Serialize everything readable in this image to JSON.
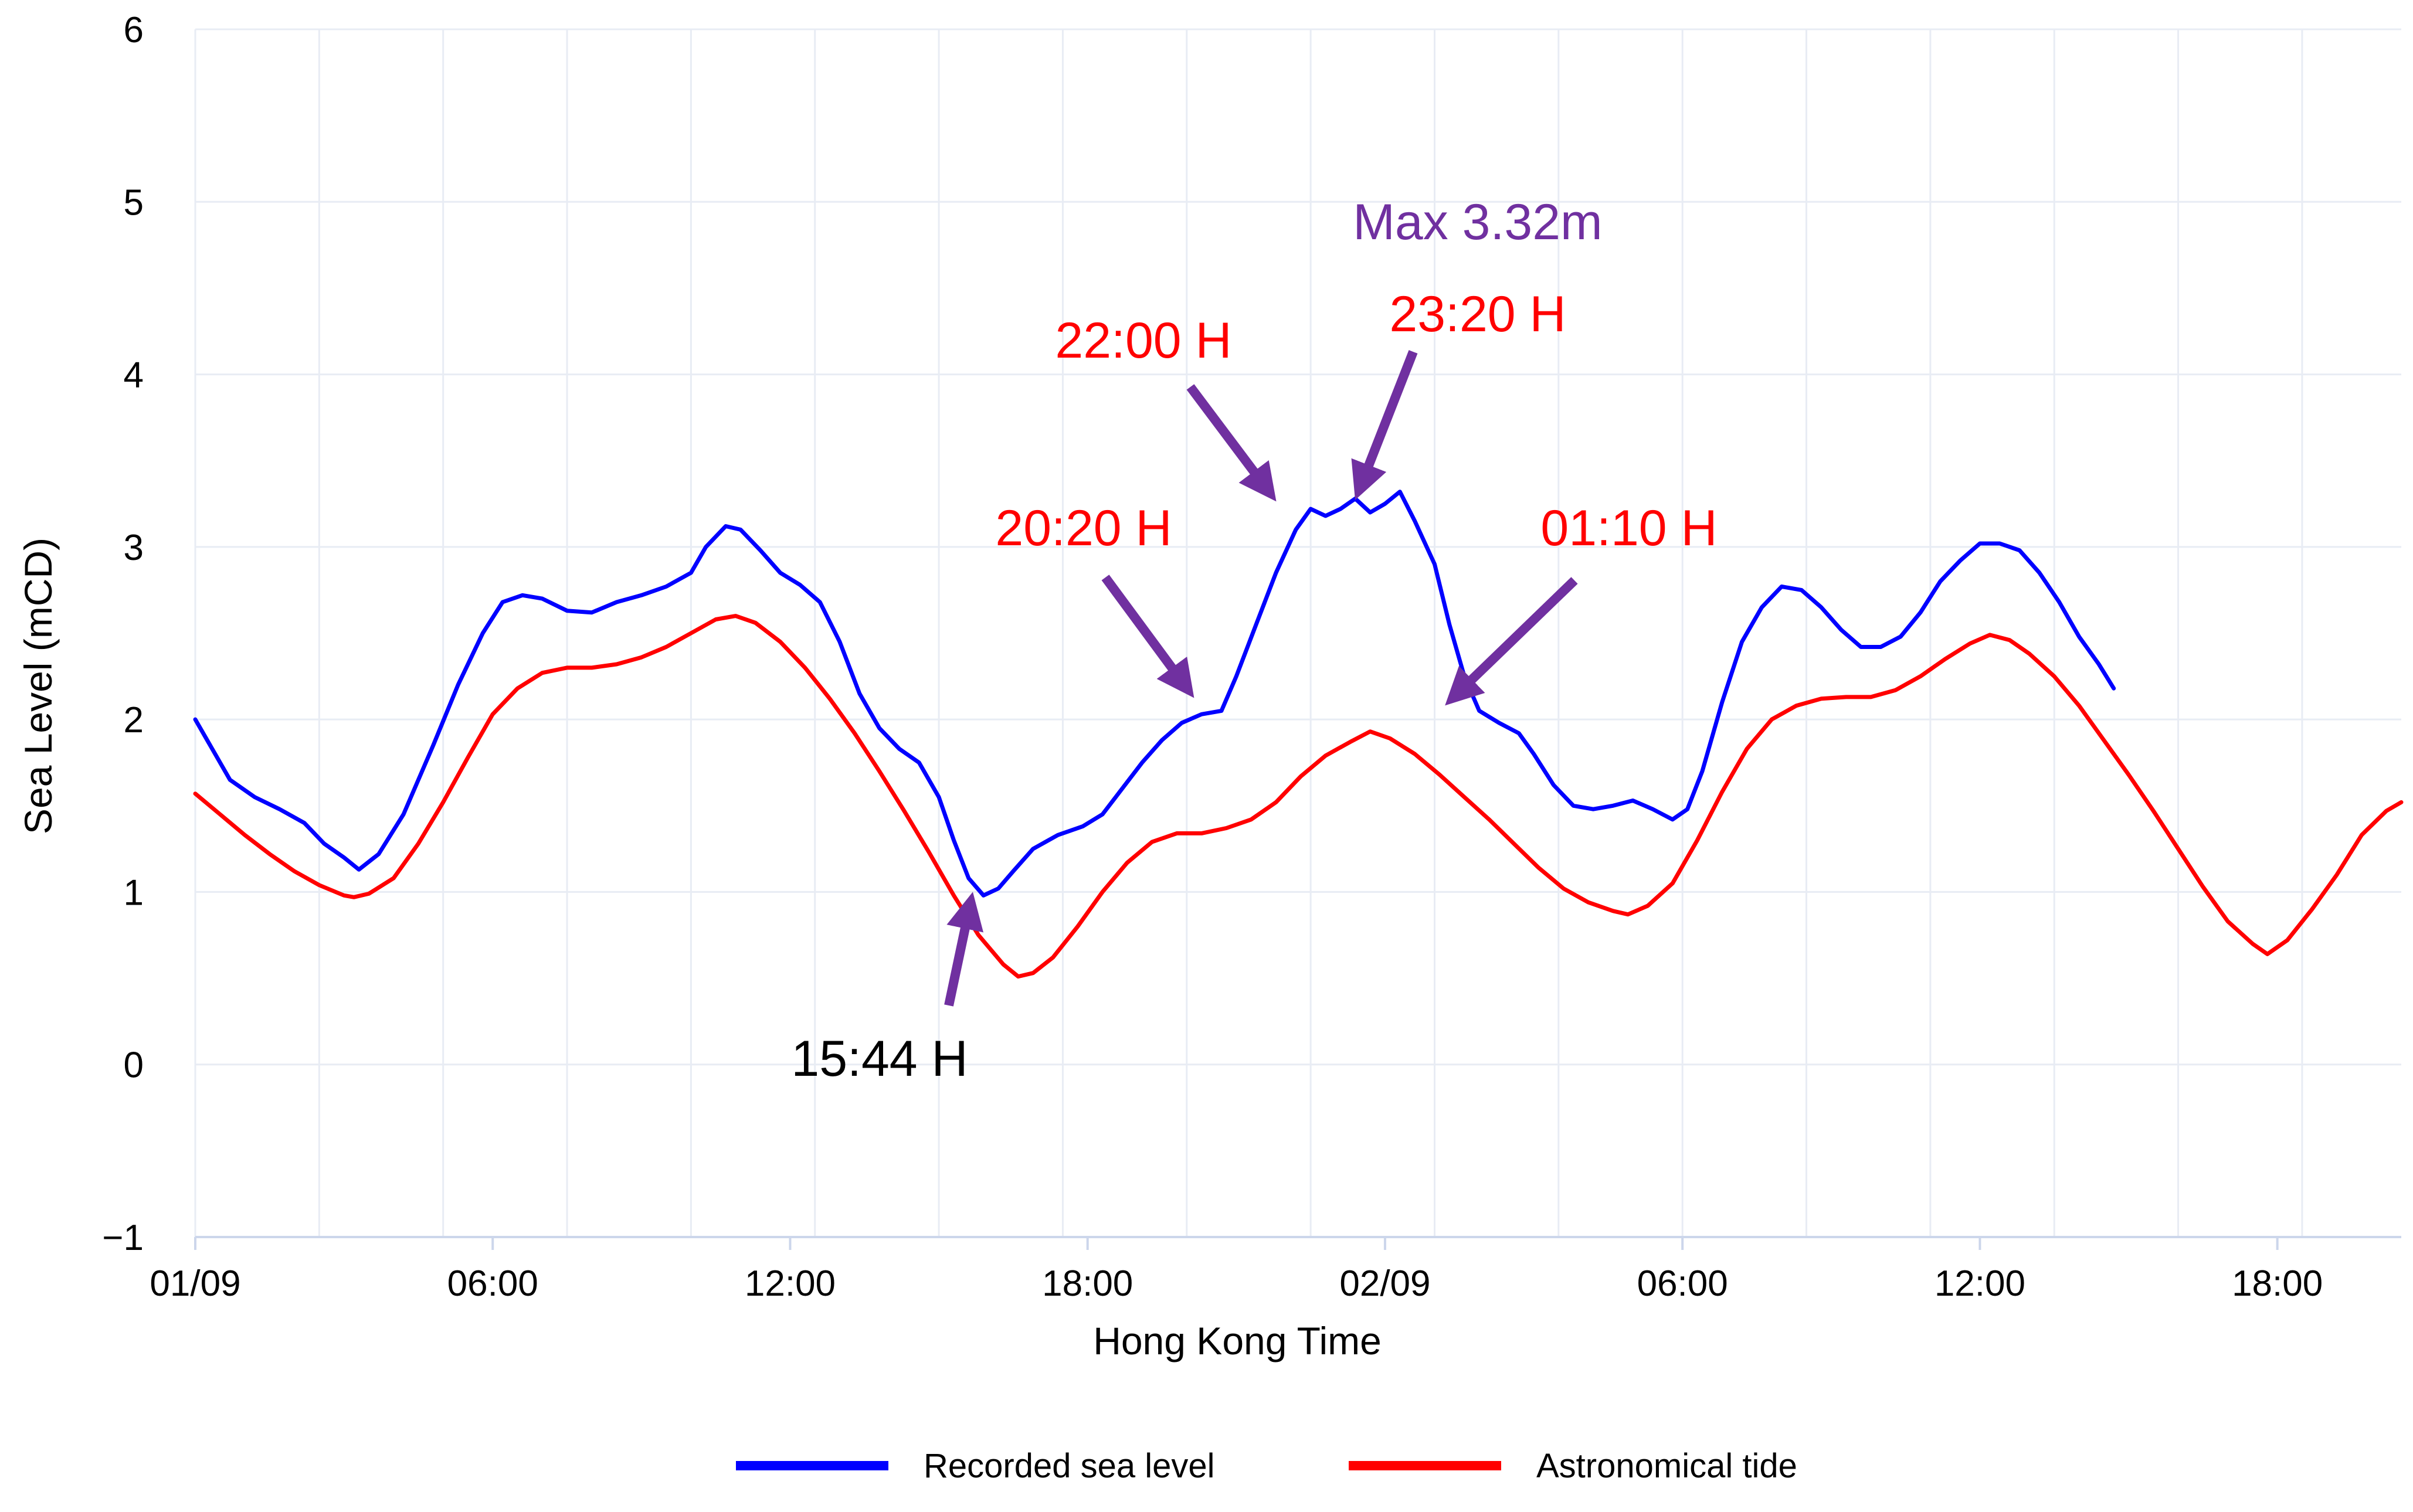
{
  "chart_data": {
    "type": "line",
    "xlabel": "Hong Kong Time",
    "ylabel": "Sea Level (mCD)",
    "x_unit": "hours from 01/09 00:00",
    "xlim": [
      0,
      44.5
    ],
    "ylim": [
      -1,
      6
    ],
    "yticks": [
      -1,
      0,
      1,
      2,
      3,
      4,
      5,
      6
    ],
    "xticks": [
      {
        "at": 0,
        "label": "01/09"
      },
      {
        "at": 6,
        "label": "06:00"
      },
      {
        "at": 12,
        "label": "12:00"
      },
      {
        "at": 18,
        "label": "18:00"
      },
      {
        "at": 24,
        "label": "02/09"
      },
      {
        "at": 30,
        "label": "06:00"
      },
      {
        "at": 36,
        "label": "12:00"
      },
      {
        "at": 42,
        "label": "18:00"
      }
    ],
    "grid": true,
    "legend": "bottom-center",
    "series": [
      {
        "name": "Recorded sea level",
        "color": "#0000ff",
        "points": [
          [
            0.0,
            2.0
          ],
          [
            0.3,
            1.85
          ],
          [
            0.7,
            1.65
          ],
          [
            1.2,
            1.55
          ],
          [
            1.7,
            1.48
          ],
          [
            2.2,
            1.4
          ],
          [
            2.6,
            1.28
          ],
          [
            3.0,
            1.2
          ],
          [
            3.3,
            1.13
          ],
          [
            3.7,
            1.22
          ],
          [
            4.2,
            1.45
          ],
          [
            4.8,
            1.85
          ],
          [
            5.3,
            2.2
          ],
          [
            5.8,
            2.5
          ],
          [
            6.2,
            2.68
          ],
          [
            6.6,
            2.72
          ],
          [
            7.0,
            2.7
          ],
          [
            7.5,
            2.63
          ],
          [
            8.0,
            2.62
          ],
          [
            8.5,
            2.68
          ],
          [
            9.0,
            2.72
          ],
          [
            9.5,
            2.77
          ],
          [
            10.0,
            2.85
          ],
          [
            10.3,
            3.0
          ],
          [
            10.7,
            3.12
          ],
          [
            11.0,
            3.1
          ],
          [
            11.4,
            2.98
          ],
          [
            11.8,
            2.85
          ],
          [
            12.2,
            2.78
          ],
          [
            12.6,
            2.68
          ],
          [
            13.0,
            2.45
          ],
          [
            13.4,
            2.15
          ],
          [
            13.8,
            1.95
          ],
          [
            14.2,
            1.83
          ],
          [
            14.6,
            1.75
          ],
          [
            15.0,
            1.55
          ],
          [
            15.3,
            1.3
          ],
          [
            15.6,
            1.08
          ],
          [
            15.9,
            0.98
          ],
          [
            16.2,
            1.02
          ],
          [
            16.5,
            1.12
          ],
          [
            16.9,
            1.25
          ],
          [
            17.4,
            1.33
          ],
          [
            17.9,
            1.38
          ],
          [
            18.3,
            1.45
          ],
          [
            18.7,
            1.6
          ],
          [
            19.1,
            1.75
          ],
          [
            19.5,
            1.88
          ],
          [
            19.9,
            1.98
          ],
          [
            20.3,
            2.03
          ],
          [
            20.7,
            2.05
          ],
          [
            21.0,
            2.25
          ],
          [
            21.4,
            2.55
          ],
          [
            21.8,
            2.85
          ],
          [
            22.2,
            3.1
          ],
          [
            22.5,
            3.22
          ],
          [
            22.8,
            3.18
          ],
          [
            23.1,
            3.22
          ],
          [
            23.4,
            3.28
          ],
          [
            23.7,
            3.2
          ],
          [
            24.0,
            3.25
          ],
          [
            24.3,
            3.32
          ],
          [
            24.6,
            3.15
          ],
          [
            25.0,
            2.9
          ],
          [
            25.3,
            2.55
          ],
          [
            25.6,
            2.25
          ],
          [
            25.9,
            2.05
          ],
          [
            26.3,
            1.98
          ],
          [
            26.7,
            1.92
          ],
          [
            27.0,
            1.8
          ],
          [
            27.4,
            1.62
          ],
          [
            27.8,
            1.5
          ],
          [
            28.2,
            1.48
          ],
          [
            28.6,
            1.5
          ],
          [
            29.0,
            1.53
          ],
          [
            29.4,
            1.48
          ],
          [
            29.8,
            1.42
          ],
          [
            30.1,
            1.48
          ],
          [
            30.4,
            1.7
          ],
          [
            30.8,
            2.1
          ],
          [
            31.2,
            2.45
          ],
          [
            31.6,
            2.65
          ],
          [
            32.0,
            2.77
          ],
          [
            32.4,
            2.75
          ],
          [
            32.8,
            2.65
          ],
          [
            33.2,
            2.52
          ],
          [
            33.6,
            2.42
          ],
          [
            34.0,
            2.42
          ],
          [
            34.4,
            2.48
          ],
          [
            34.8,
            2.62
          ],
          [
            35.2,
            2.8
          ],
          [
            35.6,
            2.92
          ],
          [
            36.0,
            3.02
          ],
          [
            36.4,
            3.02
          ],
          [
            36.8,
            2.98
          ],
          [
            37.2,
            2.85
          ],
          [
            37.6,
            2.68
          ],
          [
            38.0,
            2.48
          ],
          [
            38.4,
            2.32
          ],
          [
            38.7,
            2.18
          ]
        ]
      },
      {
        "name": "Astronomical tide",
        "color": "#ff0000",
        "points": [
          [
            0.0,
            1.57
          ],
          [
            0.5,
            1.45
          ],
          [
            1.0,
            1.33
          ],
          [
            1.5,
            1.22
          ],
          [
            2.0,
            1.12
          ],
          [
            2.5,
            1.04
          ],
          [
            3.0,
            0.98
          ],
          [
            3.2,
            0.97
          ],
          [
            3.5,
            0.99
          ],
          [
            4.0,
            1.08
          ],
          [
            4.5,
            1.28
          ],
          [
            5.0,
            1.52
          ],
          [
            5.5,
            1.78
          ],
          [
            6.0,
            2.03
          ],
          [
            6.5,
            2.18
          ],
          [
            7.0,
            2.27
          ],
          [
            7.5,
            2.3
          ],
          [
            8.0,
            2.3
          ],
          [
            8.5,
            2.32
          ],
          [
            9.0,
            2.36
          ],
          [
            9.5,
            2.42
          ],
          [
            10.0,
            2.5
          ],
          [
            10.5,
            2.58
          ],
          [
            10.9,
            2.6
          ],
          [
            11.3,
            2.56
          ],
          [
            11.8,
            2.45
          ],
          [
            12.3,
            2.3
          ],
          [
            12.8,
            2.12
          ],
          [
            13.3,
            1.92
          ],
          [
            13.8,
            1.7
          ],
          [
            14.3,
            1.47
          ],
          [
            14.8,
            1.23
          ],
          [
            15.3,
            0.98
          ],
          [
            15.8,
            0.75
          ],
          [
            16.3,
            0.58
          ],
          [
            16.6,
            0.51
          ],
          [
            16.9,
            0.53
          ],
          [
            17.3,
            0.62
          ],
          [
            17.8,
            0.8
          ],
          [
            18.3,
            1.0
          ],
          [
            18.8,
            1.17
          ],
          [
            19.3,
            1.29
          ],
          [
            19.8,
            1.34
          ],
          [
            20.3,
            1.34
          ],
          [
            20.8,
            1.37
          ],
          [
            21.3,
            1.42
          ],
          [
            21.8,
            1.52
          ],
          [
            22.3,
            1.67
          ],
          [
            22.8,
            1.79
          ],
          [
            23.3,
            1.87
          ],
          [
            23.7,
            1.93
          ],
          [
            24.1,
            1.89
          ],
          [
            24.6,
            1.8
          ],
          [
            25.1,
            1.68
          ],
          [
            25.6,
            1.55
          ],
          [
            26.1,
            1.42
          ],
          [
            26.6,
            1.28
          ],
          [
            27.1,
            1.14
          ],
          [
            27.6,
            1.02
          ],
          [
            28.1,
            0.94
          ],
          [
            28.6,
            0.89
          ],
          [
            28.9,
            0.87
          ],
          [
            29.3,
            0.92
          ],
          [
            29.8,
            1.05
          ],
          [
            30.3,
            1.3
          ],
          [
            30.8,
            1.58
          ],
          [
            31.3,
            1.83
          ],
          [
            31.8,
            2.0
          ],
          [
            32.3,
            2.08
          ],
          [
            32.8,
            2.12
          ],
          [
            33.3,
            2.13
          ],
          [
            33.8,
            2.13
          ],
          [
            34.3,
            2.17
          ],
          [
            34.8,
            2.25
          ],
          [
            35.3,
            2.35
          ],
          [
            35.8,
            2.44
          ],
          [
            36.2,
            2.49
          ],
          [
            36.6,
            2.46
          ],
          [
            37.0,
            2.38
          ],
          [
            37.5,
            2.25
          ],
          [
            38.0,
            2.08
          ],
          [
            38.5,
            1.88
          ],
          [
            39.0,
            1.68
          ],
          [
            39.5,
            1.47
          ],
          [
            40.0,
            1.25
          ],
          [
            40.5,
            1.03
          ],
          [
            41.0,
            0.83
          ],
          [
            41.5,
            0.7
          ],
          [
            41.8,
            0.64
          ],
          [
            42.2,
            0.72
          ],
          [
            42.7,
            0.9
          ],
          [
            43.2,
            1.1
          ],
          [
            43.7,
            1.33
          ],
          [
            44.2,
            1.47
          ],
          [
            44.5,
            1.52
          ]
        ]
      }
    ],
    "annotations": [
      {
        "text": "Max 3.32m",
        "color": "#7030a0",
        "x": 24.3,
        "y": 3.32
      },
      {
        "text": "23:20 H",
        "color": "#ff0000",
        "x": 23.33,
        "y": 3.3
      },
      {
        "text": "22:00 H",
        "color": "#ff0000",
        "x": 22.0,
        "y": 3.2
      },
      {
        "text": "20:20 H",
        "color": "#ff0000",
        "x": 20.33,
        "y": 2.05
      },
      {
        "text": "01:10 H",
        "color": "#ff0000",
        "x": 25.17,
        "y": 2.0
      },
      {
        "text": "15:44 H",
        "color": "#000000",
        "x": 15.73,
        "y": 0.98
      }
    ],
    "arrow_color": "#7030a0"
  }
}
